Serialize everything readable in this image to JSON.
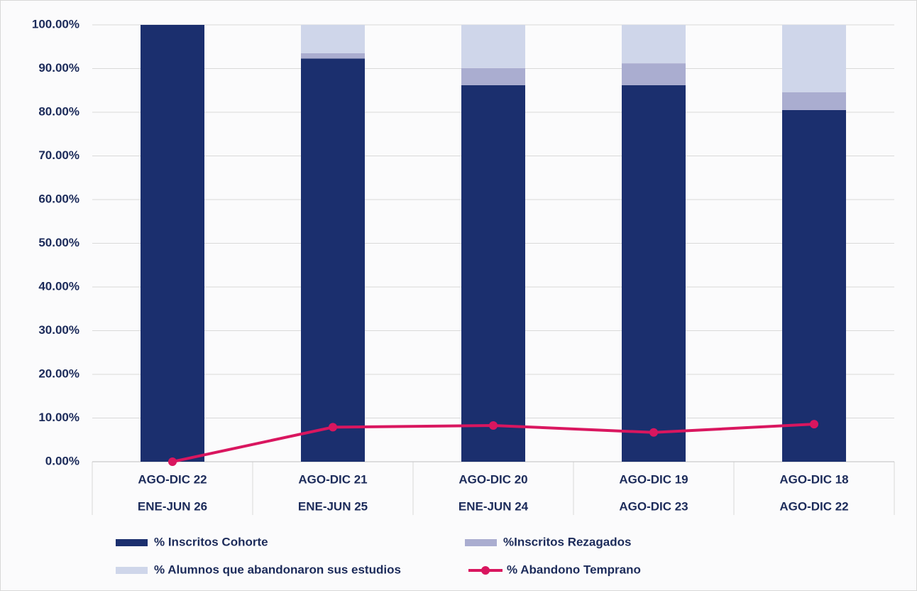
{
  "chart_data": {
    "type": "stacked-bar-line",
    "categories": [
      [
        "AGO-DIC 22",
        "ENE-JUN 26"
      ],
      [
        "AGO-DIC 21",
        "ENE-JUN 25"
      ],
      [
        "AGO-DIC 20",
        "ENE-JUN 24"
      ],
      [
        "AGO-DIC 19",
        "AGO-DIC 23"
      ],
      [
        "AGO-DIC 18",
        "AGO-DIC 22"
      ]
    ],
    "series": [
      {
        "name": "% Inscritos Cohorte",
        "color": "#1b2f6e",
        "type": "bar",
        "values": [
          100,
          92.3,
          86.2,
          86.2,
          80.5
        ]
      },
      {
        "name": "%Inscritos Rezagados",
        "color": "#aaadd0",
        "type": "bar",
        "values": [
          0,
          1.2,
          3.9,
          5.0,
          4.1
        ]
      },
      {
        "name": "% Alumnos que abandonaron sus estudios",
        "color": "#cfd6ea",
        "type": "bar",
        "values": [
          0,
          6.5,
          9.9,
          8.8,
          15.4
        ]
      },
      {
        "name": "% Abandono Temprano",
        "color": "#d9165f",
        "type": "line",
        "values": [
          0,
          7.9,
          8.3,
          6.7,
          8.6
        ]
      }
    ],
    "ylim": [
      0,
      100
    ],
    "yticks": [
      {
        "value": 0,
        "label": "0.00%"
      },
      {
        "value": 10,
        "label": "10.00%"
      },
      {
        "value": 20,
        "label": "20.00%"
      },
      {
        "value": 30,
        "label": "30.00%"
      },
      {
        "value": 40,
        "label": "40.00%"
      },
      {
        "value": 50,
        "label": "50.00%"
      },
      {
        "value": 60,
        "label": "60.00%"
      },
      {
        "value": 70,
        "label": "70.00%"
      },
      {
        "value": 80,
        "label": "80.00%"
      },
      {
        "value": 90,
        "label": "90.00%"
      },
      {
        "value": 100,
        "label": "100.00%"
      }
    ],
    "grid": true,
    "legend": "bottom"
  }
}
